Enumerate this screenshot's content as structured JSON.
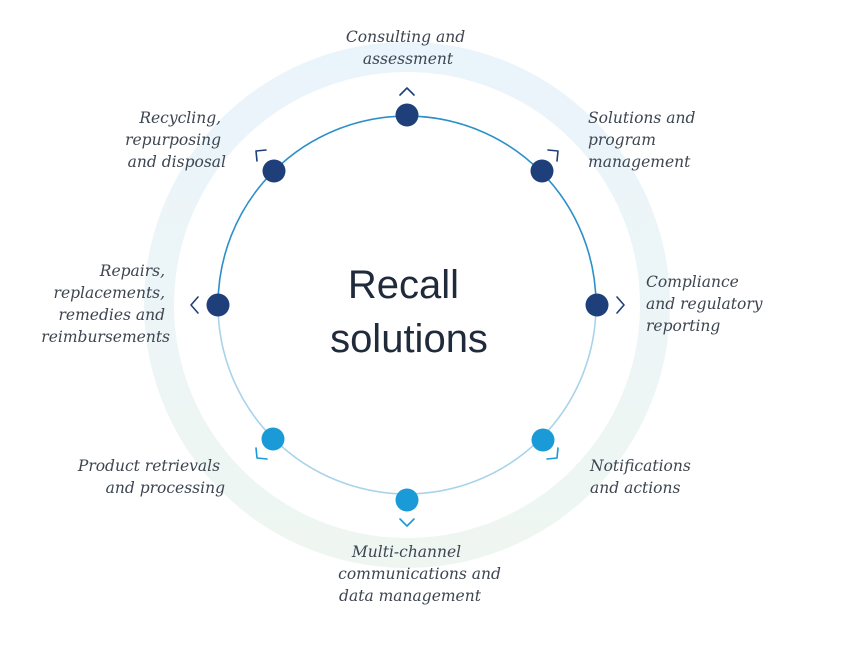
{
  "title": {
    "line1": "Recall",
    "line2": "solutions"
  },
  "colors": {
    "dark_node": "#1f3f7a",
    "light_node": "#1a9ad6",
    "ring_top": "#2b8fc9",
    "ring_bottom": "#a9d3ea",
    "halo_top": "#eaf4fb",
    "halo_bottom": "#eff6f2",
    "label_text": "#3d4550",
    "title_text": "#1f2a3a"
  },
  "nodes": [
    {
      "id": "consulting",
      "tone": "dark",
      "lines": [
        "Consulting and",
        "assessment"
      ]
    },
    {
      "id": "solutions-program",
      "tone": "dark",
      "lines": [
        "Solutions and",
        "program",
        "management"
      ]
    },
    {
      "id": "compliance",
      "tone": "dark",
      "lines": [
        "Compliance",
        "and regulatory",
        "reporting"
      ]
    },
    {
      "id": "notifications",
      "tone": "light",
      "lines": [
        "Notifications",
        "and actions"
      ]
    },
    {
      "id": "multichannel",
      "tone": "light",
      "lines": [
        "Multi-channel",
        "communications and",
        "data management"
      ]
    },
    {
      "id": "product-retrievals",
      "tone": "light",
      "lines": [
        "Product retrievals",
        "and processing"
      ]
    },
    {
      "id": "repairs",
      "tone": "dark",
      "lines": [
        "Repairs,",
        "replacements,",
        "remedies and",
        "reimbursements"
      ]
    },
    {
      "id": "recycling",
      "tone": "dark",
      "lines": [
        "Recycling,",
        "repurposing",
        "and disposal"
      ]
    }
  ]
}
